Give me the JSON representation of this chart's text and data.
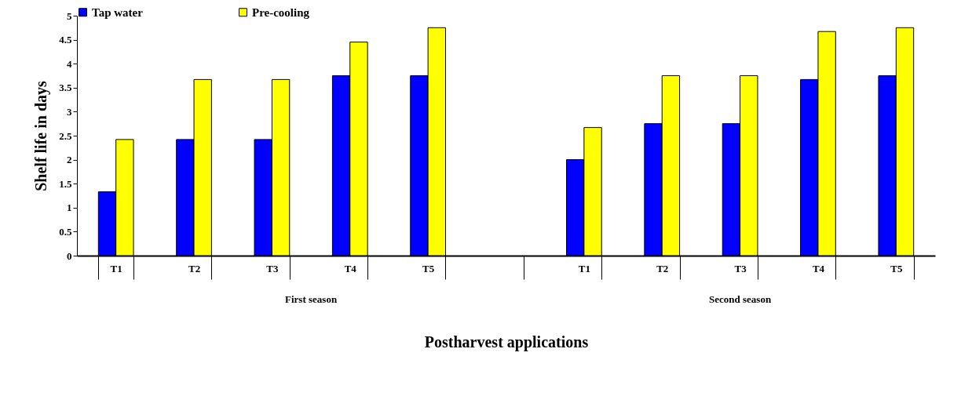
{
  "chart_data": {
    "type": "bar",
    "xlabel": "Postharvest applications",
    "ylabel": "Shelf life in days",
    "categories": [
      "T1",
      "T2",
      "T3",
      "T4",
      "T5",
      null,
      "T1",
      "T2",
      "T3",
      "T4",
      "T5"
    ],
    "series": [
      {
        "name": "Tap water",
        "color": "#0000ff",
        "values": [
          1.33,
          2.42,
          2.42,
          3.75,
          3.75,
          null,
          2.0,
          2.75,
          2.75,
          3.67,
          3.75
        ]
      },
      {
        "name": "Pre-cooling",
        "color": "#ffff00",
        "values": [
          2.42,
          3.67,
          3.67,
          4.45,
          4.75,
          null,
          2.67,
          3.75,
          3.75,
          4.67,
          4.75
        ]
      }
    ],
    "ylim": [
      0,
      5
    ],
    "yticks": [
      0,
      0.5,
      1,
      1.5,
      2,
      2.5,
      3,
      3.5,
      4,
      4.5,
      5
    ],
    "grid": false,
    "legend": "top",
    "annotations": [
      "First season",
      "Second season"
    ]
  }
}
